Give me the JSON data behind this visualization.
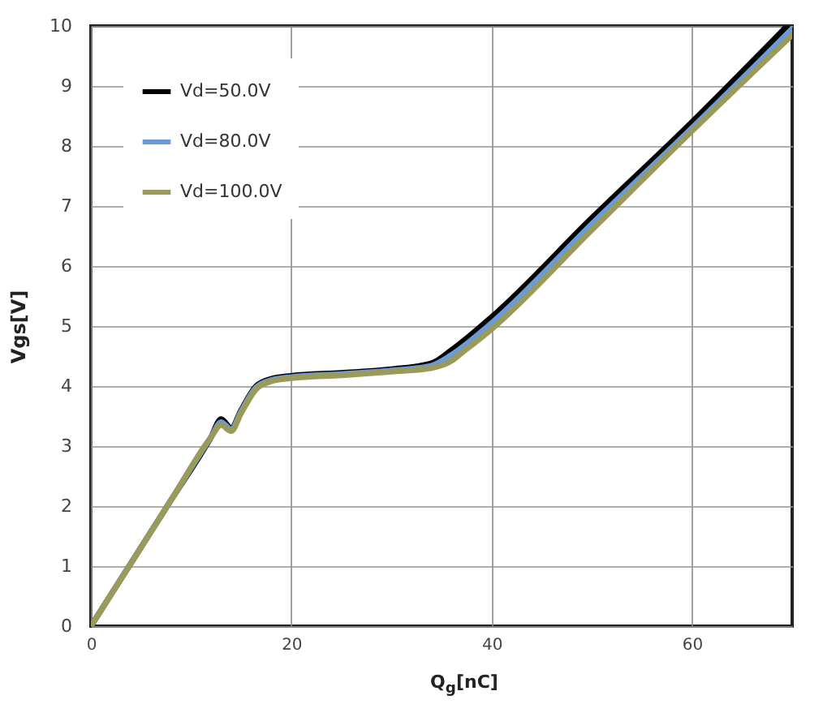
{
  "chart_data": {
    "type": "line",
    "xlabel": "Q$_{g}$[nC]",
    "ylabel": "Vgs[V]",
    "xlim": [
      0,
      70
    ],
    "ylim": [
      0,
      10
    ],
    "xticks": [
      0,
      20,
      40,
      60
    ],
    "yticks": [
      0,
      1,
      2,
      3,
      4,
      5,
      6,
      7,
      8,
      9,
      10
    ],
    "grid": true,
    "legend": "top left",
    "marker": "none",
    "line_style": "solid",
    "series": [
      {
        "name": "Vd=50.0V",
        "color": "#000000",
        "x": [
          0,
          4,
          8,
          12,
          13,
          14,
          15,
          16.5,
          18,
          20,
          25,
          30,
          34,
          36,
          40,
          50,
          60,
          69.5
        ],
        "values": [
          0,
          1.05,
          2.1,
          3.15,
          3.45,
          3.3,
          3.6,
          4.0,
          4.12,
          4.17,
          4.22,
          4.28,
          4.38,
          4.6,
          5.15,
          6.8,
          8.4,
          10
        ]
      },
      {
        "name": "Vd=80.0V",
        "color": "#6a9ad8",
        "x": [
          0,
          4,
          8,
          12,
          13,
          14,
          15,
          16.5,
          18,
          20,
          25,
          30,
          34,
          36,
          40,
          50,
          60,
          70
        ],
        "values": [
          0,
          1.05,
          2.1,
          3.15,
          3.4,
          3.28,
          3.58,
          3.98,
          4.1,
          4.15,
          4.2,
          4.26,
          4.34,
          4.52,
          5.05,
          6.7,
          8.3,
          9.95
        ]
      },
      {
        "name": "Vd=100.0V",
        "color": "#9a9a5a",
        "x": [
          0,
          4,
          8,
          12,
          13,
          14,
          15,
          16.5,
          18,
          20,
          25,
          30,
          34,
          36,
          37,
          40,
          50,
          60,
          70
        ],
        "values": [
          0,
          1.05,
          2.1,
          3.15,
          3.35,
          3.25,
          3.55,
          3.95,
          4.08,
          4.13,
          4.18,
          4.24,
          4.3,
          4.42,
          4.55,
          4.95,
          6.6,
          8.25,
          9.85
        ]
      }
    ]
  }
}
